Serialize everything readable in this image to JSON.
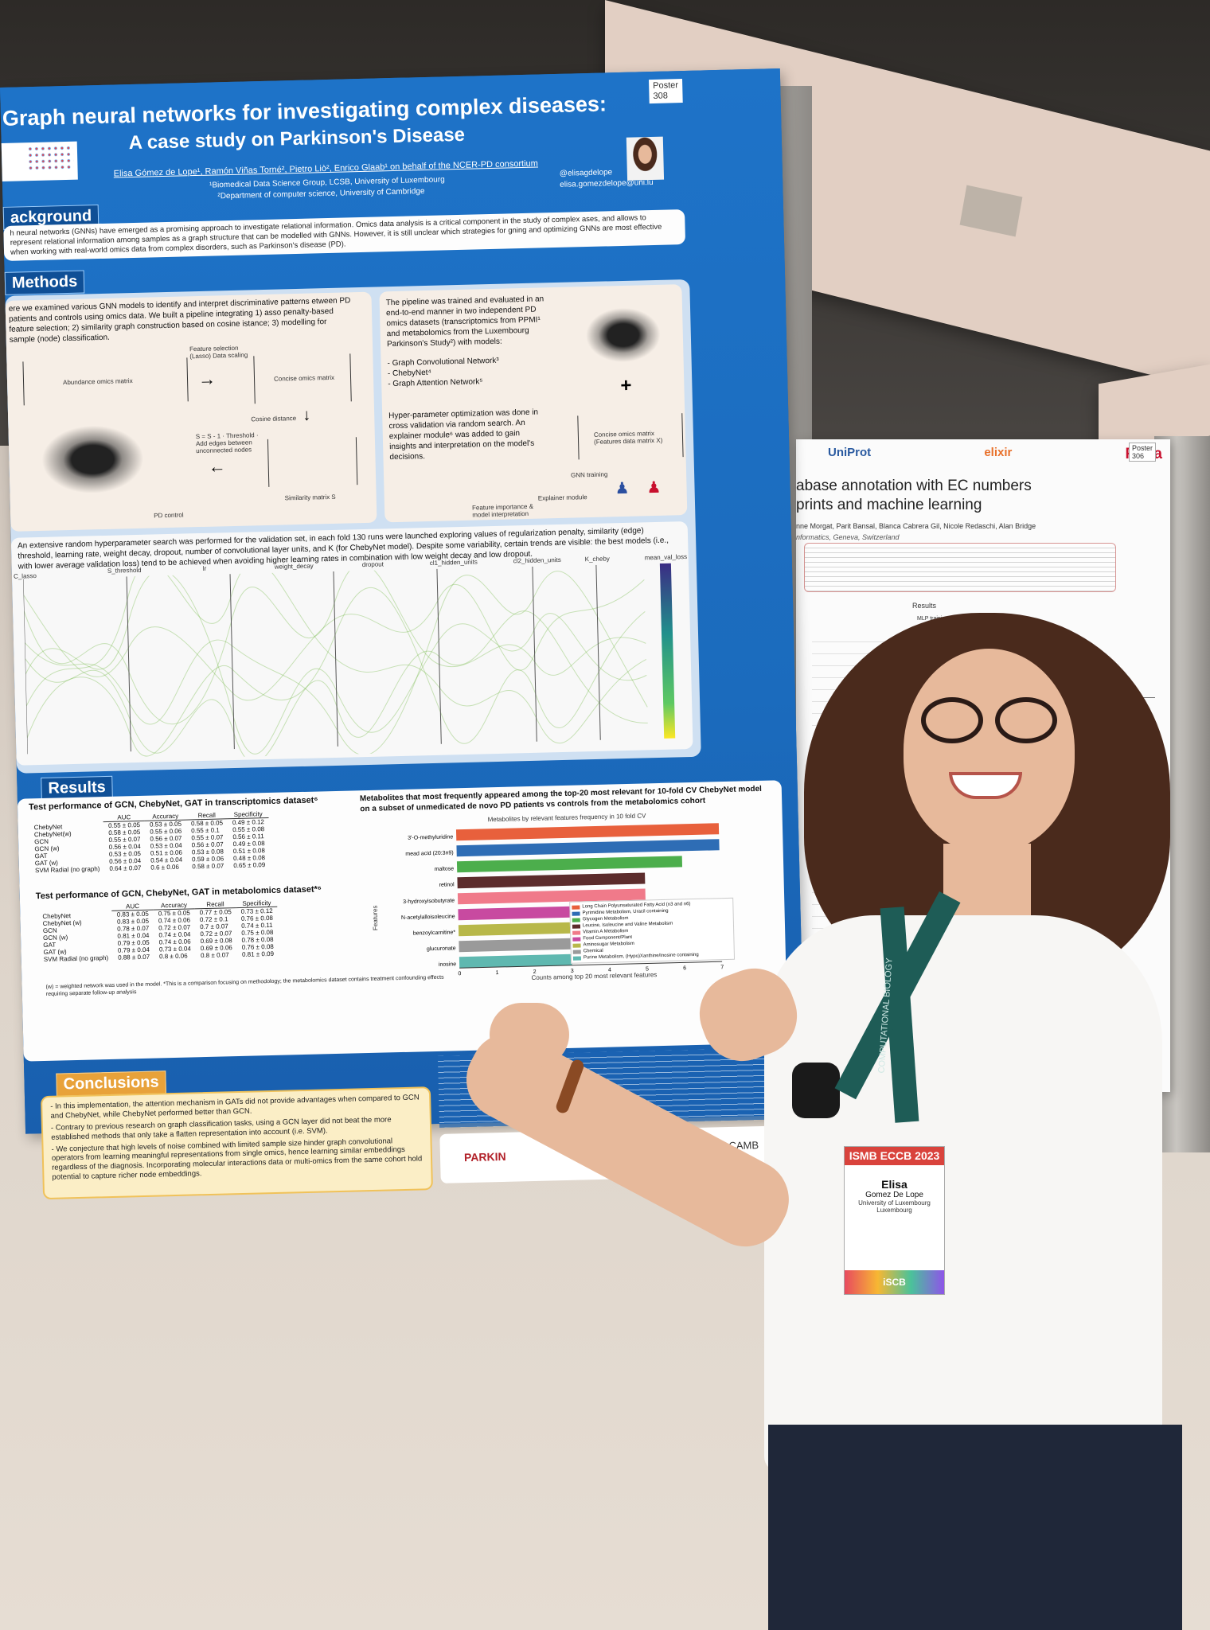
{
  "poster": {
    "number": "Poster\n308",
    "title_line1": "Graph neural networks for investigating complex diseases:",
    "title_line2": "A case study on Parkinson's Disease",
    "authors": "Elisa Gómez de Lope¹, Ramón Viñas Torné², Pietro Liò², Enrico Glaab¹ on behalf of the NCER-PD consortium",
    "affil1": "¹Biomedical Data Science Group, LCSB, University of Luxembourg",
    "affil2": "²Department of computer science, University of Cambridge",
    "twitter": "@elisagdelope",
    "email": "elisa.gomezdelope@uni.lu",
    "background_title": "ackground",
    "background_text": "h neural networks (GNNs) have emerged as a promising approach to investigate relational information. Omics data analysis is a critical component in the study of complex ases, and allows to represent relational information among samples as a graph structure that can be modelled with GNNs. However, it is still unclear which strategies for gning and optimizing GNNs are most effective when working with real-world omics data from complex disorders, such as Parkinson's disease (PD).",
    "methods_title": "Methods",
    "methods_left_text": "ere we examined various GNN models to identify and interpret discriminative patterns etween PD patients and controls using omics data. We built a pipeline integrating 1) asso penalty-based feature selection; 2) similarity graph construction based on cosine istance; 3) modelling for sample (node) classification.",
    "abundance_label": "Abundance omics matrix",
    "concise_label": "Concise omics matrix",
    "cosine_label": "Cosine distance",
    "similarity_label": "Similarity matrix S",
    "feature_sel_label": "Feature selection (Lasso) Data scaling",
    "threshold_label": "S = S - 1 · Threshold · Add edges between unconnected nodes",
    "pd_control": "PD control",
    "methods_right_text": "The pipeline was trained and evaluated in an end-to-end manner in two independent PD omics datasets (transcriptomics from PPMI¹ and metabolomics from the Luxembourg Parkinson's Study²) with models:",
    "models": [
      "Graph Convolutional Network³",
      "ChebyNet⁴",
      "Graph Attention Network⁵"
    ],
    "hyper_text": "Hyper-parameter optimization was done in cross validation via random search. An explainer module⁶ was added to gain insights and interpretation on the model's decisions.",
    "concise_x_label": "Concise omics matrix (Features data matrix X)",
    "gnn_training": "GNN training",
    "explainer_module": "Explainer module",
    "feature_importance": "Feature importance & model interpretation",
    "search_text": "An extensive random hyperparameter search was performed for the validation set, in each fold 130 runs were launched exploring values of regularization penalty, similarity (edge) threshold, learning rate, weight decay, dropout, number of convolutional layer units, and K (for ChebyNet model). Despite some variability, certain trends are visible: the best models (i.e., with lower average validation loss) tend to be achieved when avoiding higher learning rates in combination with low weight decay and low dropout.",
    "axes": [
      "C_lasso",
      "S_threshold",
      "lr",
      "weight_decay",
      "dropout",
      "cl1_hidden_units",
      "cl2_hidden_units",
      "K_cheby",
      "mean_val_loss"
    ],
    "results_title": "Results",
    "table1_title": "Test performance of GCN, ChebyNet, GAT in transcriptomics dataset⁶",
    "table_headers": [
      "AUC",
      "Accuracy",
      "Recall",
      "Specificity"
    ],
    "table1_rows": [
      [
        "ChebyNet",
        "0.55 ± 0.05",
        "0.53 ± 0.05",
        "0.58 ± 0.05",
        "0.49 ± 0.12"
      ],
      [
        "ChebyNet(w)",
        "0.58 ± 0.05",
        "0.55 ± 0.06",
        "0.55 ± 0.1",
        "0.55 ± 0.08"
      ],
      [
        "GCN",
        "0.55 ± 0.07",
        "0.56 ± 0.07",
        "0.55 ± 0.07",
        "0.56 ± 0.11"
      ],
      [
        "GCN (w)",
        "0.56 ± 0.04",
        "0.53 ± 0.04",
        "0.56 ± 0.07",
        "0.49 ± 0.08"
      ],
      [
        "GAT",
        "0.53 ± 0.05",
        "0.51 ± 0.06",
        "0.53 ± 0.08",
        "0.51 ± 0.08"
      ],
      [
        "GAT (w)",
        "0.56 ± 0.04",
        "0.54 ± 0.04",
        "0.59 ± 0.06",
        "0.48 ± 0.08"
      ],
      [
        "SVM Radial (no graph)",
        "0.64 ± 0.07",
        "0.6 ± 0.06",
        "0.58 ± 0.07",
        "0.65 ± 0.09"
      ]
    ],
    "table2_title": "Test performance of GCN, ChebyNet, GAT in metabolomics dataset*⁶",
    "table2_rows": [
      [
        "ChebyNet",
        "0.83 ± 0.05",
        "0.75 ± 0.05",
        "0.77 ± 0.05",
        "0.73 ± 0.12"
      ],
      [
        "ChebyNet (w)",
        "0.83 ± 0.05",
        "0.74 ± 0.06",
        "0.72 ± 0.1",
        "0.76 ± 0.08"
      ],
      [
        "GCN",
        "0.78 ± 0.07",
        "0.72 ± 0.07",
        "0.7 ± 0.07",
        "0.74 ± 0.11"
      ],
      [
        "GCN (w)",
        "0.81 ± 0.04",
        "0.74 ± 0.04",
        "0.72 ± 0.07",
        "0.75 ± 0.08"
      ],
      [
        "GAT",
        "0.79 ± 0.05",
        "0.74 ± 0.06",
        "0.69 ± 0.08",
        "0.78 ± 0.08"
      ],
      [
        "GAT (w)",
        "0.79 ± 0.04",
        "0.73 ± 0.04",
        "0.69 ± 0.06",
        "0.76 ± 0.08"
      ],
      [
        "SVM Radial (no graph)",
        "0.88 ± 0.07",
        "0.8 ± 0.06",
        "0.8 ± 0.07",
        "0.81 ± 0.09"
      ]
    ],
    "table_note": "(w) = weighted network was used in the model. *This is a comparison focusing on methodology; the metabolomics dataset contains treatment confounding effects requiring separate follow-up analysis",
    "metab_title": "Metabolites that most frequently appeared among the top-20 most relevant for 10-fold CV ChebyNet model on a subset of unmedicated de novo PD patients vs controls from the metabolomics cohort",
    "metab_chart_title": "Metabolites by relevant features frequency in 10 fold CV",
    "metab_xlabel": "Counts among top 20 most relevant features",
    "metab_ylabel": "Features",
    "metab_legend": [
      "Long Chain Polyunsaturated Fatty Acid (n3 and n6)",
      "Pyrimidine Metabolism, Uracil containing",
      "Glycogen Metabolism",
      "Leucine, Isoleucine and Valine Metabolism",
      "Vitamin A Metabolism",
      "Food Component/Plant",
      "Aminosugar Metabolism",
      "Chemical",
      "Purine Metabolism, (Hypo)Xanthine/Inosine containing"
    ],
    "conclusions_title": "Conclusions",
    "conclusions": [
      "- In this implementation, the attention mechanism in GATs did not provide advantages when compared to GCN and ChebyNet, while ChebyNet performed better than GCN.",
      "- Contrary to previous research on graph classification tasks, using a GCN layer did not beat the more established methods that only take a flatten representation into account (i.e. SVM).",
      "- We conjecture that high levels of noise combined with limited sample size hinder graph convolutional operators from learning meaningful representations from single omics, hence learning similar embeddings regardless of the diagnosis. Incorporating molecular interactions data or multi-omics from the same cohort hold potential to capture richer node embeddings."
    ],
    "logo_parkinson": "PARKIN",
    "logo_cambridge": "UNIVER CAMB"
  },
  "chart_data": {
    "type": "bar",
    "title": "Metabolites by relevant features frequency in 10 fold CV",
    "xlabel": "Counts among top 20 most relevant features",
    "ylabel": "Features",
    "categories": [
      "3'-O-methyluridine",
      "mead acid (20:3n9)",
      "maltose",
      "retinol",
      "3-hydroxyisobutyrate",
      "N-acetylalloisoleucine",
      "benzoylcarnitine*",
      "glucuronate",
      "inosine"
    ],
    "values": [
      7,
      7,
      6,
      5,
      5,
      4,
      3,
      3,
      3
    ],
    "xlim": [
      0,
      7
    ],
    "colors": [
      "#e8603c",
      "#2e6db5",
      "#4cae4c",
      "#5c2c2c",
      "#f07a8a",
      "#c84aa0",
      "#b8b84a",
      "#9a9a9a",
      "#5fb8b0"
    ]
  },
  "poster2": {
    "logos": [
      "UniProt",
      "elixir",
      "Rhea"
    ],
    "number": "Poster\n306",
    "title_line1": "abase annotation with EC numbers",
    "title_line2": "prints and machine learning",
    "authors": "nne Morgat, Parit Bansal, Blanca Cabrera Gil, Nicole Redaschi, Alan Bridge",
    "affil": "nformatics, Geneva, Switzerland",
    "results": "Results",
    "mlp": "MLP training"
  },
  "badge": {
    "event": "ISMB ECCB 2023",
    "name": "Elisa",
    "surname": "Gomez De Lope",
    "affil1": "University of Luxembourg",
    "affil2": "Luxembourg",
    "society": "iSCB"
  },
  "lanyard_text": "COMPUTATIONAL BIOLOGY"
}
